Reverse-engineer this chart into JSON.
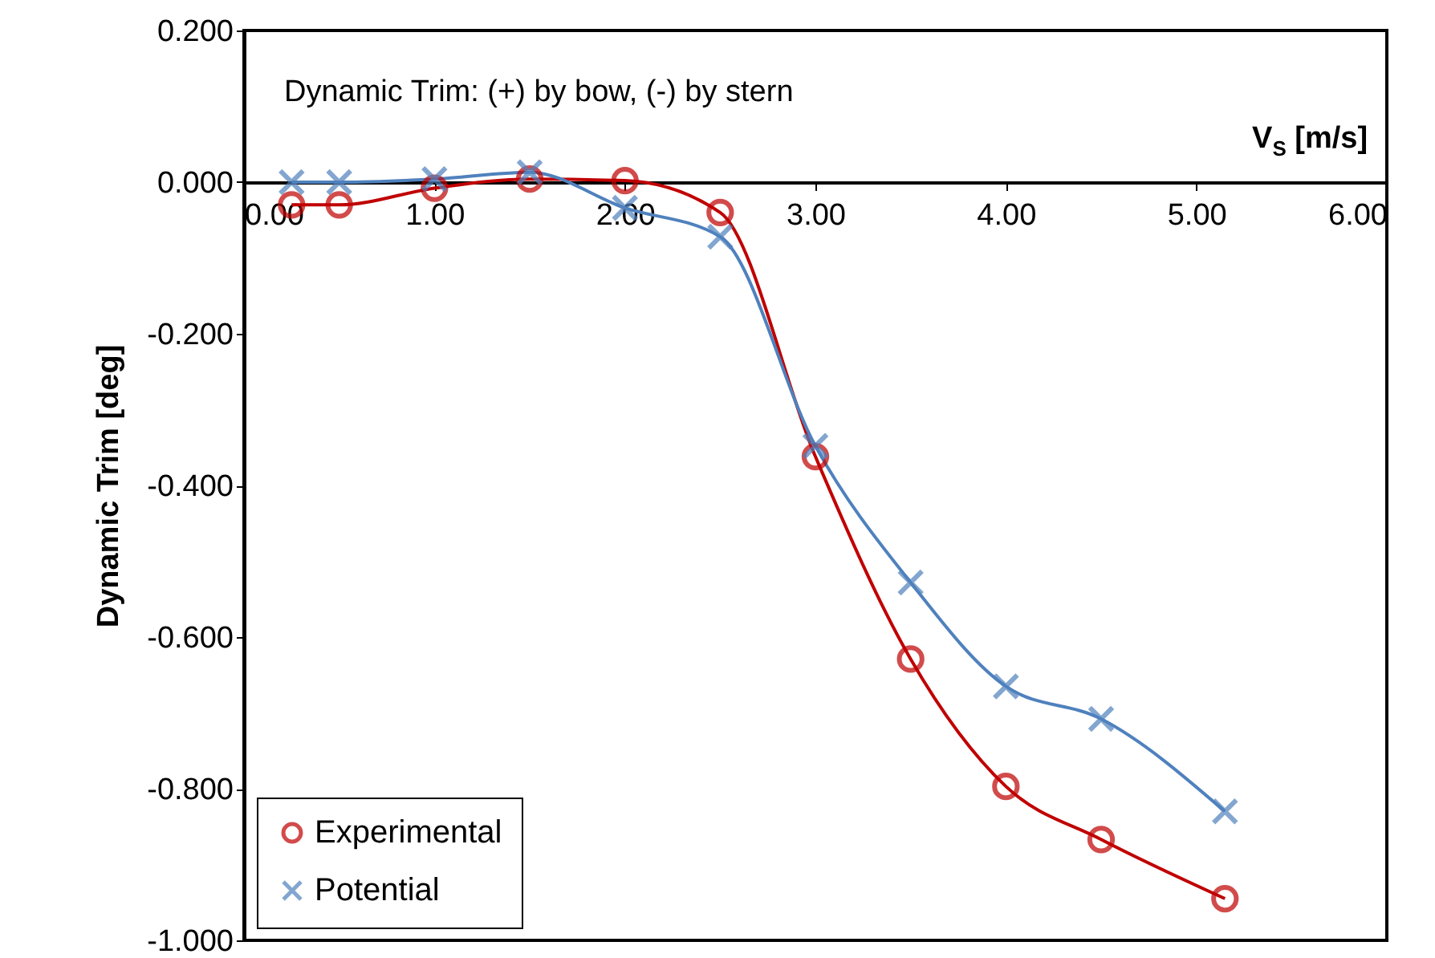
{
  "chart_data": {
    "type": "line",
    "xlabel": "V$_{S}$ [m/s]",
    "ylabel": "Dynamic Trim [deg]",
    "annotations": [
      "Dynamic Trim:  (+) by bow, (-) by stern"
    ],
    "xlim": [
      0,
      6
    ],
    "xticks": [
      {
        "value": 0,
        "label": "0.00"
      },
      {
        "value": 1,
        "label": "1.00"
      },
      {
        "value": 2,
        "label": "2.00"
      },
      {
        "value": 3,
        "label": "3.00"
      },
      {
        "value": 4,
        "label": "4.00"
      },
      {
        "value": 5,
        "label": "5.00"
      },
      {
        "value": 6,
        "label": "6.00"
      }
    ],
    "ylim": [
      -1,
      0.2
    ],
    "yticks": [
      {
        "value": -1,
        "label": "-1.000"
      },
      {
        "value": -0.8,
        "label": "-0.800"
      },
      {
        "value": -0.6,
        "label": "-0.600"
      },
      {
        "value": -0.4,
        "label": "-0.400"
      },
      {
        "value": -0.2,
        "label": "-0.200"
      },
      {
        "value": 0,
        "label": "0.000"
      },
      {
        "value": 0.2,
        "label": "0.200"
      }
    ],
    "grid": false,
    "legend": "bottom left",
    "series": [
      {
        "name": "Experimental",
        "color": "#c00000",
        "marker": "circle",
        "x": [
          0.25,
          0.5,
          1,
          1.5,
          2,
          2.5,
          3,
          3.5,
          4,
          4.5,
          5.15
        ],
        "values": [
          -0.03,
          -0.03,
          -0.008,
          0.004,
          0.002,
          -0.04,
          -0.362,
          -0.629,
          -0.797,
          -0.867,
          -0.945
        ]
      },
      {
        "name": "Potential",
        "color": "#4f81bd",
        "marker": "cross",
        "x": [
          0.25,
          0.5,
          1,
          1.5,
          2,
          2.5,
          3,
          3.5,
          4,
          4.5,
          5.15
        ],
        "values": [
          0,
          0,
          0.004,
          0.013,
          -0.034,
          -0.072,
          -0.348,
          -0.528,
          -0.665,
          -0.708,
          -0.83
        ]
      }
    ]
  }
}
